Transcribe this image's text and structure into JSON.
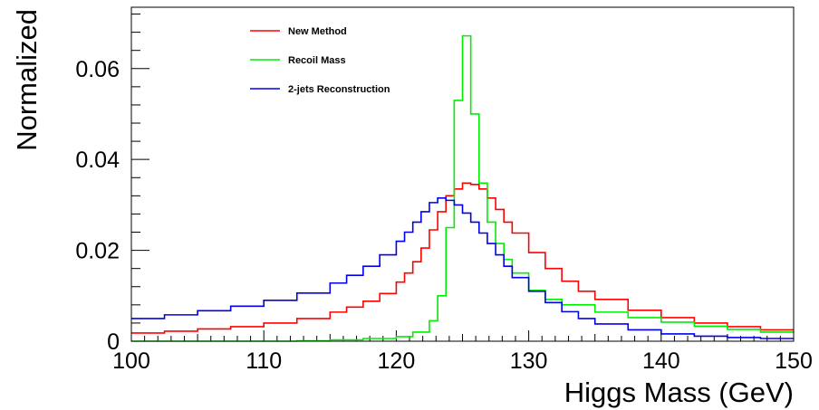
{
  "chart_data": {
    "type": "line",
    "style": "step-histogram",
    "title": "",
    "xlabel": "Higgs Mass (GeV)",
    "ylabel": "Normalized",
    "xlim": [
      100,
      150
    ],
    "ylim": [
      0,
      0.0735
    ],
    "grid": false,
    "legend_position": "top-left",
    "x_ticks": [
      "100",
      "110",
      "120",
      "130",
      "140",
      "150"
    ],
    "y_ticks": [
      "0",
      "0.02",
      "0.04",
      "0.06"
    ],
    "bin_width": 0.625,
    "series": [
      {
        "name": "New Method",
        "color": "#ff0000",
        "bin_lower_edges": [
          100,
          102.5,
          105,
          107.5,
          110,
          112.5,
          115,
          116.25,
          117.5,
          118.75,
          120,
          120.625,
          121.25,
          121.875,
          122.5,
          123.125,
          123.75,
          124.375,
          125,
          125.625,
          126.25,
          126.875,
          127.5,
          128.125,
          128.75,
          130,
          131.25,
          132.5,
          133.75,
          135,
          137.5,
          140,
          142.5,
          145,
          147.5
        ],
        "values": [
          0.0018,
          0.0022,
          0.0027,
          0.0032,
          0.004,
          0.005,
          0.0064,
          0.0075,
          0.0088,
          0.0105,
          0.013,
          0.015,
          0.0175,
          0.0205,
          0.0245,
          0.0285,
          0.032,
          0.0335,
          0.0348,
          0.0345,
          0.0335,
          0.0315,
          0.029,
          0.0262,
          0.0238,
          0.0195,
          0.016,
          0.0132,
          0.011,
          0.0092,
          0.0068,
          0.0052,
          0.004,
          0.0032,
          0.0025
        ]
      },
      {
        "name": "Recoil Mass",
        "color": "#00ee00",
        "bin_lower_edges": [
          100,
          112.5,
          115,
          117.5,
          120,
          121.25,
          122.5,
          123.125,
          123.75,
          124.375,
          125,
          125.625,
          126.25,
          126.875,
          127.5,
          128.125,
          128.75,
          130,
          131.25,
          132.5,
          135,
          137.5,
          140,
          142.5,
          145,
          147.5
        ],
        "values": [
          0.0,
          0.0001,
          0.0003,
          0.0006,
          0.001,
          0.002,
          0.0045,
          0.01,
          0.025,
          0.053,
          0.0672,
          0.05,
          0.0348,
          0.0262,
          0.0215,
          0.018,
          0.015,
          0.0112,
          0.0092,
          0.008,
          0.0064,
          0.0052,
          0.0042,
          0.0033,
          0.0026,
          0.002
        ]
      },
      {
        "name": "2-jets Reconstruction",
        "color": "#0000ee",
        "bin_lower_edges": [
          100,
          102.5,
          105,
          107.5,
          110,
          112.5,
          115,
          116.25,
          117.5,
          118.75,
          120,
          120.625,
          121.25,
          121.875,
          122.5,
          123.125,
          123.75,
          124.375,
          125,
          125.625,
          126.25,
          126.875,
          127.5,
          128.125,
          128.75,
          130,
          131.25,
          132.5,
          133.75,
          135,
          137.5,
          140,
          142.5,
          145,
          147.5
        ],
        "values": [
          0.005,
          0.0058,
          0.0067,
          0.0077,
          0.009,
          0.0106,
          0.0128,
          0.0145,
          0.0165,
          0.019,
          0.022,
          0.024,
          0.0262,
          0.0285,
          0.0305,
          0.0315,
          0.031,
          0.03,
          0.0282,
          0.0262,
          0.0238,
          0.0215,
          0.019,
          0.0165,
          0.014,
          0.011,
          0.0085,
          0.0065,
          0.005,
          0.0038,
          0.0025,
          0.0016,
          0.0011,
          0.0008,
          0.0006
        ]
      }
    ]
  }
}
